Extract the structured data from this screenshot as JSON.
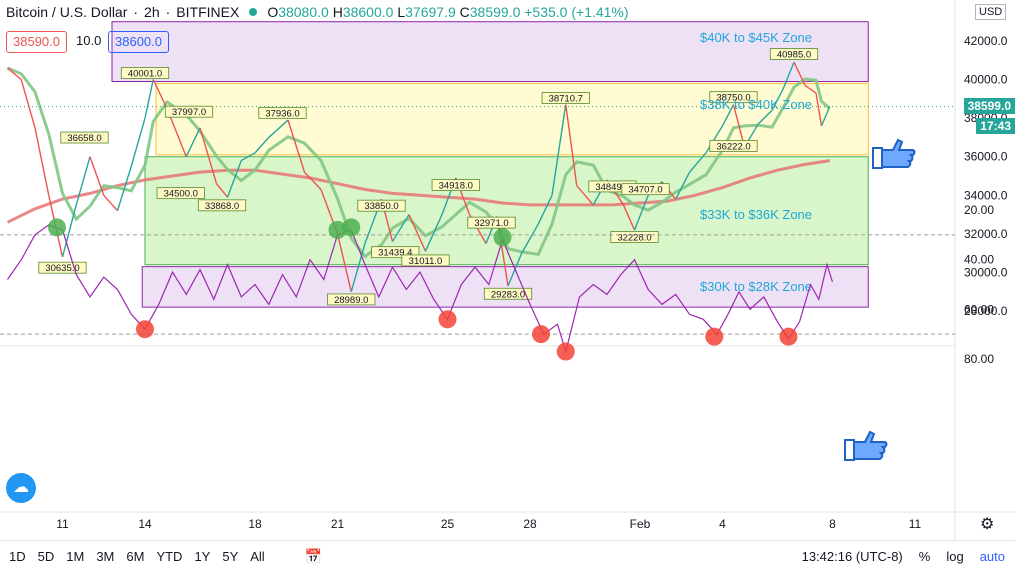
{
  "header": {
    "symbol": "Bitcoin / U.S. Dollar",
    "interval": "2h",
    "exchange": "BITFINEX",
    "open_label": "O",
    "open": "38080.0",
    "high_label": "H",
    "high": "38600.0",
    "low_label": "L",
    "low": "37697.9",
    "close_label": "C",
    "close": "38599.0",
    "change": "+535.0 (+1.41%)",
    "sell_price": "38590.0",
    "spread": "10.0",
    "buy_price": "38600.0"
  },
  "axis": {
    "currency": "USD",
    "last_price": "38599.0",
    "countdown": "17:43"
  },
  "bottom_bar": {
    "ranges": [
      "1D",
      "5D",
      "1M",
      "3M",
      "6M",
      "YTD",
      "1Y",
      "5Y",
      "All"
    ],
    "clock": "13:42:16 (UTC-8)",
    "percent": "%",
    "log": "log",
    "auto": "auto"
  },
  "colors": {
    "up": "#26a69a",
    "zone_yellow": "#fff9c4",
    "zone_green": "#ccf2b8",
    "zone_purple": "#ead7f2",
    "ma_fast": "#81c784",
    "ma_slow": "#e57373",
    "rsi_line": "#9c27b0",
    "accent": "#2962ff"
  },
  "chart_data": [
    {
      "type": "line",
      "ylim": [
        27000,
        43000
      ],
      "x_ticks": [
        "11",
        "14",
        "18",
        "21",
        "25",
        "28",
        "Feb",
        "4",
        "8",
        "11"
      ],
      "y_ticks": [
        28000,
        30000,
        32000,
        34000,
        36000,
        38000,
        40000,
        42000
      ],
      "zones": [
        {
          "label": "$40K to $45K Zone",
          "low": 39900,
          "high": 43000,
          "from": 12.8,
          "to": 40.3,
          "color": "#ead7f2"
        },
        {
          "label": "$38K to $40K Zone",
          "low": 36100,
          "high": 39800,
          "from": 14.4,
          "to": 40.3,
          "color": "#fff9c4"
        },
        {
          "label": "$33K to $36K Zone",
          "low": 30400,
          "high": 36000,
          "from": 14.0,
          "to": 40.3,
          "color": "#ccf2b8"
        },
        {
          "label": "$30K to $28K Zone",
          "low": 28200,
          "high": 30300,
          "from": 13.9,
          "to": 40.3,
          "color": "#ead7f2"
        }
      ],
      "price": [
        [
          9.0,
          40600
        ],
        [
          9.5,
          40000
        ],
        [
          10.0,
          37500
        ],
        [
          10.5,
          34000
        ],
        [
          11.0,
          30800
        ],
        [
          11.5,
          33500
        ],
        [
          12.0,
          36000
        ],
        [
          12.5,
          34000
        ],
        [
          13.0,
          33200
        ],
        [
          13.5,
          35500
        ],
        [
          14.0,
          38000
        ],
        [
          14.3,
          40000
        ],
        [
          14.8,
          38500
        ],
        [
          15.5,
          36000
        ],
        [
          16.0,
          37500
        ],
        [
          16.6,
          34600
        ],
        [
          17.0,
          33900
        ],
        [
          17.5,
          35800
        ],
        [
          18.0,
          36200
        ],
        [
          18.5,
          37000
        ],
        [
          19.2,
          37900
        ],
        [
          19.8,
          35200
        ],
        [
          20.4,
          34300
        ],
        [
          21.0,
          32000
        ],
        [
          21.5,
          29000
        ],
        [
          22.0,
          31500
        ],
        [
          22.6,
          33800
        ],
        [
          23.0,
          31600
        ],
        [
          23.6,
          33000
        ],
        [
          24.2,
          31100
        ],
        [
          24.8,
          33000
        ],
        [
          25.3,
          34900
        ],
        [
          25.8,
          33000
        ],
        [
          26.4,
          31500
        ],
        [
          26.8,
          32900
        ],
        [
          27.2,
          29300
        ],
        [
          27.7,
          31000
        ],
        [
          28.3,
          32500
        ],
        [
          28.8,
          34000
        ],
        [
          29.3,
          38700
        ],
        [
          29.7,
          34500
        ],
        [
          30.3,
          33500
        ],
        [
          30.8,
          34800
        ],
        [
          31.4,
          33500
        ],
        [
          31.8,
          32200
        ],
        [
          32.3,
          34000
        ],
        [
          32.8,
          34700
        ],
        [
          33.3,
          33800
        ],
        [
          33.8,
          35200
        ],
        [
          34.4,
          36200
        ],
        [
          35.0,
          37600
        ],
        [
          35.4,
          38700
        ],
        [
          35.8,
          36500
        ],
        [
          36.3,
          37700
        ],
        [
          36.8,
          38400
        ],
        [
          37.2,
          39500
        ],
        [
          37.6,
          40900
        ],
        [
          38.0,
          39700
        ],
        [
          38.4,
          39300
        ],
        [
          38.6,
          37600
        ],
        [
          38.9,
          38599
        ]
      ],
      "ma_slow": [
        [
          9.0,
          32600
        ],
        [
          10.0,
          33300
        ],
        [
          11.0,
          33800
        ],
        [
          12.0,
          34100
        ],
        [
          13.0,
          34500
        ],
        [
          14.0,
          34800
        ],
        [
          15.0,
          35000
        ],
        [
          16.0,
          35200
        ],
        [
          17.0,
          35300
        ],
        [
          18.0,
          35300
        ],
        [
          19.0,
          35100
        ],
        [
          20.0,
          34900
        ],
        [
          21.0,
          34600
        ],
        [
          22.0,
          34300
        ],
        [
          23.0,
          34100
        ],
        [
          24.0,
          34000
        ],
        [
          25.0,
          33900
        ],
        [
          26.0,
          33800
        ],
        [
          27.0,
          33600
        ],
        [
          28.0,
          33500
        ],
        [
          29.0,
          33500
        ],
        [
          30.0,
          33500
        ],
        [
          31.0,
          33500
        ],
        [
          32.0,
          33600
        ],
        [
          33.0,
          33700
        ],
        [
          34.0,
          34000
        ],
        [
          35.0,
          34400
        ],
        [
          36.0,
          34900
        ],
        [
          37.0,
          35300
        ],
        [
          38.0,
          35600
        ],
        [
          38.9,
          35800
        ]
      ],
      "data_labels": [
        {
          "x": 14.0,
          "y": 40001,
          "text": "40001.0"
        },
        {
          "x": 11.0,
          "y": 30635,
          "text": "30635.0"
        },
        {
          "x": 11.8,
          "y": 36658,
          "text": "36658.0"
        },
        {
          "x": 15.6,
          "y": 37997,
          "text": "37997.0"
        },
        {
          "x": 15.3,
          "y": 34500,
          "text": "34500.0"
        },
        {
          "x": 16.8,
          "y": 33868,
          "text": "33868.0"
        },
        {
          "x": 19.0,
          "y": 37936,
          "text": "37936.0"
        },
        {
          "x": 22.6,
          "y": 33850,
          "text": "33850.0"
        },
        {
          "x": 23.1,
          "y": 31439,
          "text": "31439.4"
        },
        {
          "x": 21.5,
          "y": 28989,
          "text": "28989.0"
        },
        {
          "x": 24.2,
          "y": 31011,
          "text": "31011.0"
        },
        {
          "x": 25.3,
          "y": 34918,
          "text": "34918.0"
        },
        {
          "x": 26.6,
          "y": 32971,
          "text": "32971.0"
        },
        {
          "x": 27.2,
          "y": 29283,
          "text": "29283.0"
        },
        {
          "x": 29.3,
          "y": 38710,
          "text": "38710.7"
        },
        {
          "x": 31.0,
          "y": 34849,
          "text": "34849.0"
        },
        {
          "x": 32.2,
          "y": 34707,
          "text": "34707.0"
        },
        {
          "x": 31.8,
          "y": 32228,
          "text": "32228.0"
        },
        {
          "x": 35.4,
          "y": 38750,
          "text": "38750.0"
        },
        {
          "x": 35.4,
          "y": 36222,
          "text": "36222.0"
        },
        {
          "x": 37.6,
          "y": 40985,
          "text": "40985.0"
        }
      ]
    },
    {
      "type": "line",
      "ylim": [
        20,
        85
      ],
      "y_ticks": [
        20,
        40,
        60,
        80
      ],
      "band": [
        30,
        70
      ],
      "rsi": [
        [
          9.0,
          48
        ],
        [
          9.5,
          40
        ],
        [
          10.0,
          30
        ],
        [
          10.5,
          26
        ],
        [
          11.0,
          28
        ],
        [
          11.5,
          46
        ],
        [
          12.0,
          55
        ],
        [
          12.5,
          47
        ],
        [
          13.0,
          52
        ],
        [
          13.5,
          62
        ],
        [
          14.0,
          68
        ],
        [
          14.5,
          58
        ],
        [
          15.0,
          45
        ],
        [
          15.5,
          54
        ],
        [
          16.0,
          44
        ],
        [
          16.5,
          56
        ],
        [
          17.0,
          42
        ],
        [
          17.5,
          55
        ],
        [
          18.0,
          50
        ],
        [
          18.5,
          58
        ],
        [
          19.0,
          46
        ],
        [
          19.5,
          55
        ],
        [
          20.0,
          40
        ],
        [
          20.5,
          48
        ],
        [
          21.0,
          30
        ],
        [
          21.5,
          28
        ],
        [
          22.0,
          42
        ],
        [
          22.5,
          55
        ],
        [
          23.0,
          43
        ],
        [
          23.5,
          52
        ],
        [
          24.0,
          45
        ],
        [
          24.5,
          56
        ],
        [
          25.0,
          64
        ],
        [
          25.5,
          50
        ],
        [
          26.0,
          43
        ],
        [
          26.5,
          50
        ],
        [
          27.0,
          32
        ],
        [
          27.5,
          45
        ],
        [
          28.0,
          58
        ],
        [
          28.5,
          70
        ],
        [
          29.0,
          66
        ],
        [
          29.3,
          77
        ],
        [
          29.8,
          55
        ],
        [
          30.3,
          50
        ],
        [
          30.8,
          54
        ],
        [
          31.3,
          46
        ],
        [
          31.8,
          40
        ],
        [
          32.3,
          52
        ],
        [
          32.8,
          58
        ],
        [
          33.3,
          54
        ],
        [
          33.8,
          62
        ],
        [
          34.3,
          64
        ],
        [
          34.8,
          70
        ],
        [
          35.2,
          62
        ],
        [
          35.6,
          53
        ],
        [
          36.0,
          60
        ],
        [
          36.5,
          55
        ],
        [
          37.0,
          65
        ],
        [
          37.4,
          72
        ],
        [
          37.8,
          65
        ],
        [
          38.2,
          50
        ],
        [
          38.5,
          56
        ],
        [
          38.8,
          42
        ],
        [
          39.0,
          49
        ]
      ],
      "overbought_markers": [
        [
          14.0,
          68
        ],
        [
          25.0,
          64
        ],
        [
          28.4,
          70
        ],
        [
          29.3,
          77
        ],
        [
          34.7,
          71
        ],
        [
          37.4,
          71
        ]
      ],
      "oversold_markers": [
        [
          10.8,
          27
        ],
        [
          21.0,
          28
        ],
        [
          21.5,
          27
        ],
        [
          27.0,
          31
        ]
      ]
    }
  ]
}
